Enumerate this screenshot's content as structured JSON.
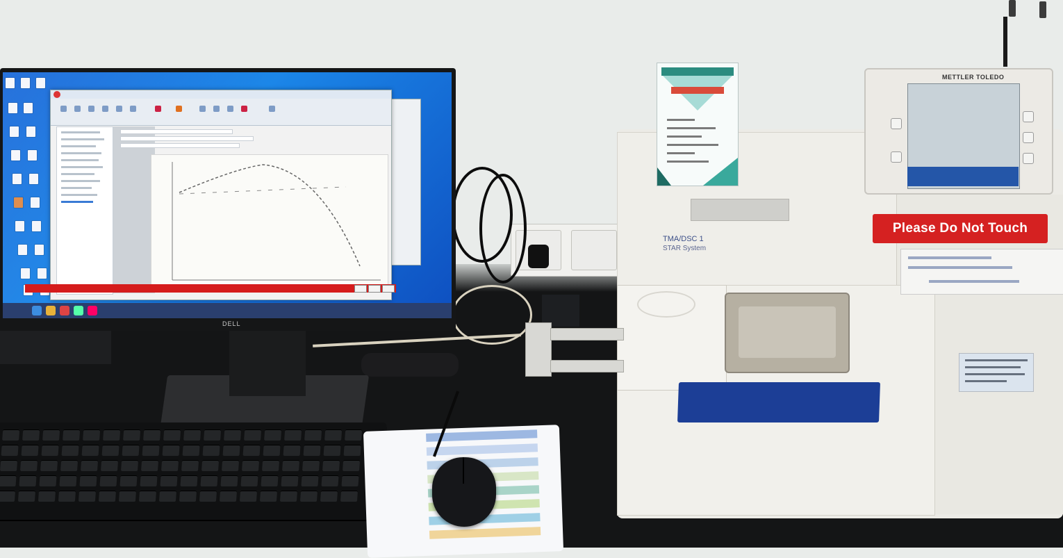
{
  "scene": {
    "description_free": true,
    "monitor": {
      "brand": "DELL"
    },
    "instrument": {
      "model_line1": "TMA/DSC 1",
      "model_line2": "STAR System",
      "warning_sign": "Please Do Not Touch",
      "display_brand": "METTLER TOLEDO"
    }
  },
  "colors": {
    "desktop_blue": "#1565d8",
    "warning_red": "#d52121",
    "instrument_blue": "#1c3e96",
    "desk_black": "#141516"
  },
  "icons": [
    "desktop-icon",
    "mouse-icon",
    "keyboard-icon"
  ]
}
